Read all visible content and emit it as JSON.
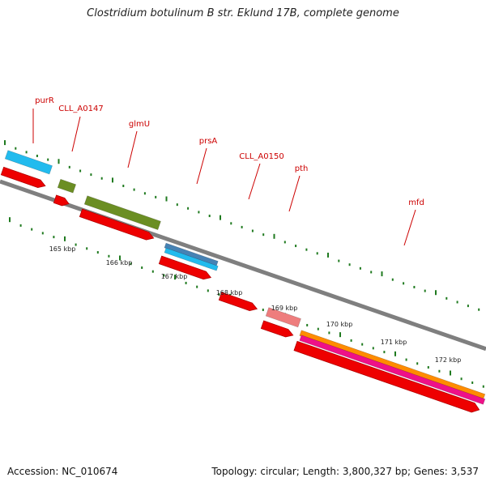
{
  "title": "Clostridium botulinum B str. Eklund 17B, complete genome",
  "accession": "Accession: NC_010674",
  "summary": "Topology: circular; Length: 3,800,327 bp; Genes: 3,537",
  "colors": {
    "backbone": "#7f7f7f",
    "cds": "#ee0000",
    "tick": "#1f7a1f",
    "gene_label": "#cc0000"
  },
  "gene_labels": [
    {
      "name": "purR"
    },
    {
      "name": "CLL_A0147"
    },
    {
      "name": "glmU"
    },
    {
      "name": "prsA"
    },
    {
      "name": "CLL_A0150"
    },
    {
      "name": "pth"
    },
    {
      "name": "mfd"
    }
  ],
  "features": [
    {
      "track": "cds",
      "color": "#ee0000",
      "strand": "+"
    },
    {
      "track": "cds",
      "color": "#ee0000",
      "strand": "+"
    },
    {
      "track": "cds",
      "color": "#ee0000",
      "strand": "+"
    },
    {
      "track": "cds",
      "color": "#ee0000",
      "strand": "+"
    },
    {
      "track": "cds",
      "color": "#ee0000",
      "strand": "+"
    },
    {
      "track": "cds",
      "color": "#ee0000",
      "strand": "+"
    },
    {
      "track": "cds",
      "color": "#ee0000",
      "strand": "+"
    },
    {
      "track": "cds",
      "color": "#ee0000",
      "strand": "+"
    },
    {
      "track": "annotation",
      "color": "#22bbee"
    },
    {
      "track": "annotation",
      "color": "#6b8e23"
    },
    {
      "track": "annotation",
      "color": "#6b8e23"
    },
    {
      "track": "annotation",
      "color": "#4682b4"
    },
    {
      "track": "annotation",
      "color": "#22bbee"
    },
    {
      "track": "annotation",
      "color": "#ee7d7d"
    },
    {
      "track": "annotation",
      "color": "#ff8c00"
    },
    {
      "track": "annotation",
      "color": "#ee1188"
    }
  ],
  "scale_labels": [
    "165 kbp",
    "166 kbp",
    "167 kbp",
    "168 kbp",
    "169 kbp",
    "170 kbp",
    "171 kbp",
    "172 kbp"
  ]
}
